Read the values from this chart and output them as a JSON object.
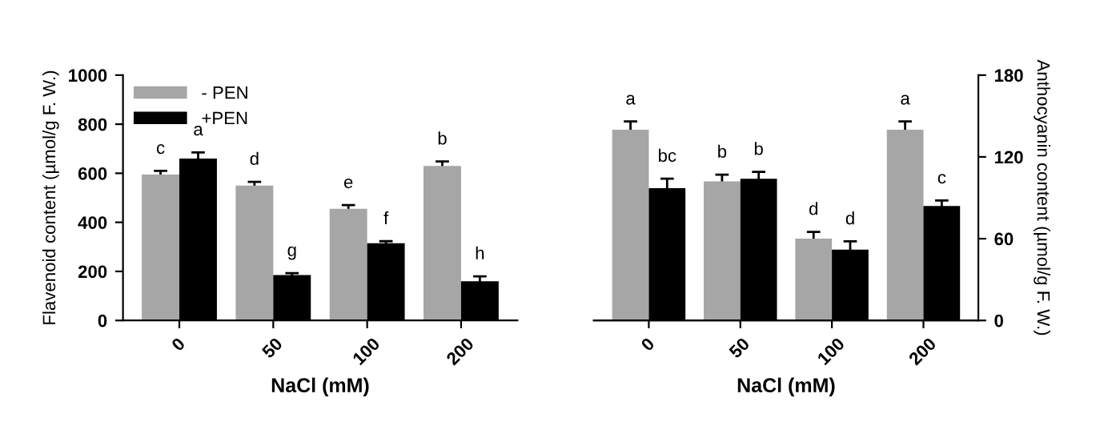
{
  "chart_data": [
    {
      "type": "bar",
      "xlabel": "NaCl (mM)",
      "ylabel": "Flavenoid content (µmol/g F. W.)",
      "categories": [
        "0",
        "50",
        "100",
        "200"
      ],
      "series": [
        {
          "name": "- PEN",
          "color": "#a6a6a6",
          "values": [
            595,
            550,
            455,
            630
          ],
          "errors": [
            15,
            15,
            15,
            18
          ]
        },
        {
          "name": "+PEN",
          "color": "#000000",
          "values": [
            660,
            185,
            315,
            160
          ],
          "errors": [
            25,
            8,
            8,
            20
          ]
        }
      ],
      "ylim": [
        0,
        1000
      ],
      "yticks": [
        0,
        200,
        400,
        600,
        800,
        1000
      ],
      "legend": "top left",
      "grid": false,
      "annotations": [
        {
          "text": "c",
          "x": "0",
          "y": 610
        },
        {
          "text": "a",
          "x": "0",
          "y": 685
        },
        {
          "text": "d",
          "x": "50",
          "y": 565
        },
        {
          "text": "g",
          "x": "50",
          "y": 193
        },
        {
          "text": "e",
          "x": "100",
          "y": 470
        },
        {
          "text": "f",
          "x": "100",
          "y": 323
        },
        {
          "text": "b",
          "x": "200",
          "y": 648
        },
        {
          "text": "h",
          "x": "200",
          "y": 180
        }
      ]
    },
    {
      "type": "bar",
      "xlabel": "NaCl (mM)",
      "y2label": "Anthocyanin content (µmol/g F. W.)",
      "categories": [
        "0",
        "50",
        "100",
        "200"
      ],
      "series": [
        {
          "color": "#a6a6a6",
          "axis": "y2",
          "values": [
            140,
            102,
            60,
            140
          ],
          "errors": [
            6,
            5,
            5,
            6
          ]
        },
        {
          "color": "#000000",
          "axis": "y2",
          "values": [
            97,
            104,
            52,
            84
          ],
          "errors": [
            7,
            5,
            6,
            4
          ]
        }
      ],
      "y2lim": [
        0,
        180
      ],
      "y2ticks": [
        0,
        60,
        120,
        180
      ],
      "legend": false,
      "grid": false,
      "annotations": [
        "a",
        "bc",
        "b",
        "b",
        "d",
        "d",
        "a",
        "c"
      ]
    }
  ]
}
